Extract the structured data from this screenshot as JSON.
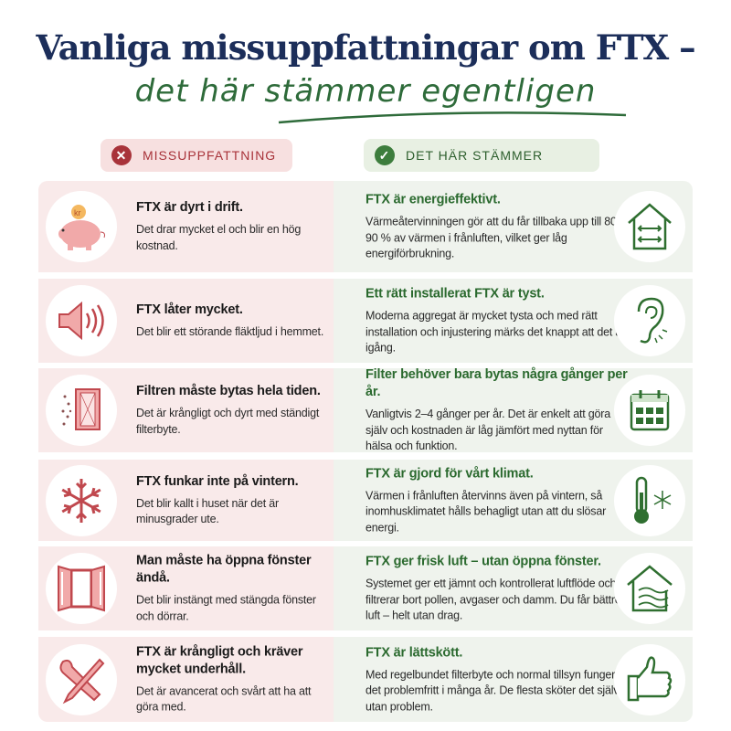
{
  "title": "Vanliga missuppfattningar om FTX –",
  "subtitle": "det här stämmer egentligen",
  "colors": {
    "navy": "#1c2e5a",
    "green": "#2e6b3a",
    "red": "#a8333a",
    "pink_bg": "#f9eaea",
    "green_bg": "#eff3ed"
  },
  "headers": {
    "myth": {
      "label": "MISSUPPFATTNING",
      "icon": "x-circle-icon"
    },
    "fact": {
      "label": "DET HÄR STÄMMER",
      "icon": "check-circle-icon"
    }
  },
  "rows": [
    {
      "myth": {
        "title": "FTX är dyrt i drift.",
        "text": "Det drar mycket el och blir en hög kostnad.",
        "icon": "piggy-bank-icon",
        "coin": "kr"
      },
      "fact": {
        "title": "FTX är energieffektivt.",
        "text": "Värmeåtervinningen gör att du får tillbaka upp till 80–90 % av värmen i frånluften, vilket ger låg energiförbrukning.",
        "icon": "house-arrows-icon"
      }
    },
    {
      "myth": {
        "title": "FTX låter mycket.",
        "text": "Det blir ett störande fläktljud i hemmet.",
        "icon": "speaker-icon"
      },
      "fact": {
        "title": "Ett rätt installerat FTX är tyst.",
        "text": "Moderna aggregat är mycket tysta och med rätt installation och injustering märks det knappt att det är igång.",
        "icon": "ear-icon"
      }
    },
    {
      "myth": {
        "title": "Filtren måste bytas hela tiden.",
        "text": "Det är krångligt och dyrt med ständigt filterbyte.",
        "icon": "filter-icon"
      },
      "fact": {
        "title": "Filter behöver bara bytas några gånger per år.",
        "text": "Vanligtvis 2–4 gånger per år. Det är enkelt att göra själv och kostnaden är låg jämfört med nyttan för hälsa och funktion.",
        "icon": "calendar-icon"
      }
    },
    {
      "myth": {
        "title": "FTX funkar inte på vintern.",
        "text": "Det blir kallt i huset när det är minusgrader ute.",
        "icon": "snowflake-icon"
      },
      "fact": {
        "title": "FTX är gjord för vårt klimat.",
        "text": "Värmen i frånluften återvinns även på vintern, så inomhusklimatet hålls behagligt utan att du slösar energi.",
        "icon": "thermometer-icon"
      }
    },
    {
      "myth": {
        "title": "Man måste ha öppna fönster ändå.",
        "text": "Det blir instängt med stängda fönster och dörrar.",
        "icon": "open-window-icon"
      },
      "fact": {
        "title": "FTX ger frisk luft – utan öppna fönster.",
        "text": "Systemet ger ett jämnt och kontrollerat luftflöde och filtrerar bort pollen, avgaser och damm. Du får bättre luft – helt utan drag.",
        "icon": "house-air-icon"
      }
    },
    {
      "myth": {
        "title": "FTX är krångligt och kräver mycket underhåll.",
        "text": "Det är avancerat och svårt att ha att göra med.",
        "icon": "tools-icon"
      },
      "fact": {
        "title": "FTX är lättskött.",
        "text": "Med regelbundet filterbyte och normal tillsyn fungerar det problemfritt i många år. De flesta sköter det själva utan problem.",
        "icon": "thumbs-up-icon"
      }
    }
  ]
}
